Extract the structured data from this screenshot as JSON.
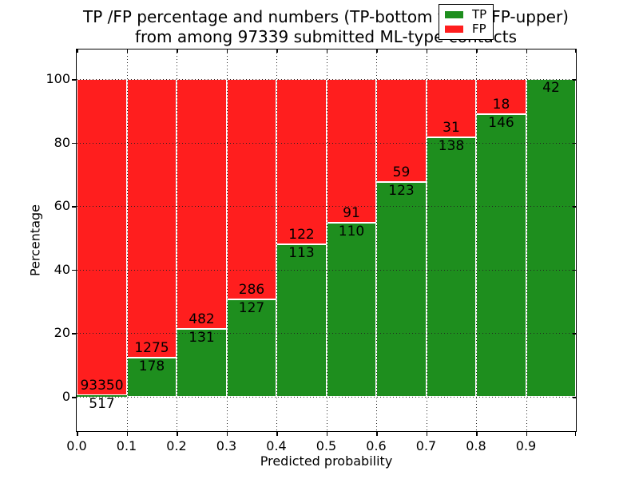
{
  "figure": {
    "title_line1": "TP /FP percentage and numbers (TP-bottom value, FP-upper)",
    "title_line2": "from among 97339 submitted ML-type contacts",
    "xlabel": "Predicted probability",
    "ylabel": "Percentage"
  },
  "legend": {
    "items": [
      {
        "label": "TP",
        "color": "#1e8e1e"
      },
      {
        "label": "FP",
        "color": "#ff1e1e"
      }
    ]
  },
  "chart_data": {
    "type": "bar",
    "stacked": true,
    "normalized": "each bin scaled to 100%",
    "title": "TP /FP percentage and numbers (TP-bottom value, FP-upper) from among 97339 submitted ML-type contacts",
    "xlabel": "Predicted probability",
    "ylabel": "Percentage",
    "total_contacts": 97339,
    "bin_edges": [
      0.0,
      0.1,
      0.2,
      0.3,
      0.4,
      0.5,
      0.6,
      0.7,
      0.8,
      0.9,
      1.0
    ],
    "x_tick_labels": [
      "0.0",
      "0.1",
      "0.2",
      "0.3",
      "0.4",
      "0.5",
      "0.6",
      "0.7",
      "0.8",
      "0.9"
    ],
    "y_ticks": [
      0,
      20,
      40,
      60,
      80,
      100
    ],
    "xlim": [
      0.0,
      1.0
    ],
    "ylim": [
      -10.8,
      109.3
    ],
    "grid": "dotted both axes, drawn over bars",
    "legend_position": "upper right",
    "series": [
      {
        "name": "TP",
        "color": "#1e8e1e",
        "counts": [
          517,
          178,
          131,
          127,
          113,
          110,
          123,
          138,
          146,
          42
        ],
        "percent": [
          0.55,
          12.25,
          21.37,
          30.75,
          48.09,
          54.73,
          67.58,
          81.66,
          89.02,
          100.0
        ]
      },
      {
        "name": "FP",
        "color": "#ff1e1e",
        "counts": [
          93350,
          1275,
          482,
          286,
          122,
          91,
          59,
          31,
          18,
          0
        ],
        "percent": [
          99.45,
          87.75,
          78.63,
          69.25,
          51.91,
          45.27,
          32.42,
          18.34,
          10.98,
          0.0
        ]
      }
    ]
  }
}
